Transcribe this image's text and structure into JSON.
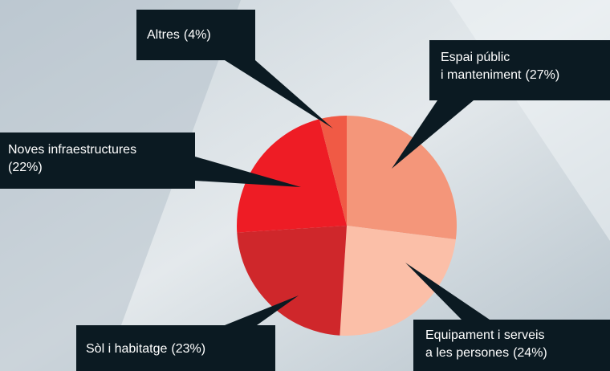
{
  "chart_data": {
    "type": "pie",
    "categories": [
      [
        "Espai públic",
        "i manteniment"
      ],
      [
        "Equipament i serveis",
        "a les persones"
      ],
      [
        "Sòl i habitatge"
      ],
      [
        "Noves infraestructures"
      ],
      [
        "Altres"
      ]
    ],
    "values": [
      27,
      24,
      23,
      22,
      4
    ],
    "value_labels": [
      "(27%)",
      "(24%)",
      "(23%)",
      "(22%)",
      "(4%)"
    ],
    "colors": [
      "#f4967a",
      "#fbbfa8",
      "#cf272b",
      "#ee1c25",
      "#f05a45"
    ]
  }
}
